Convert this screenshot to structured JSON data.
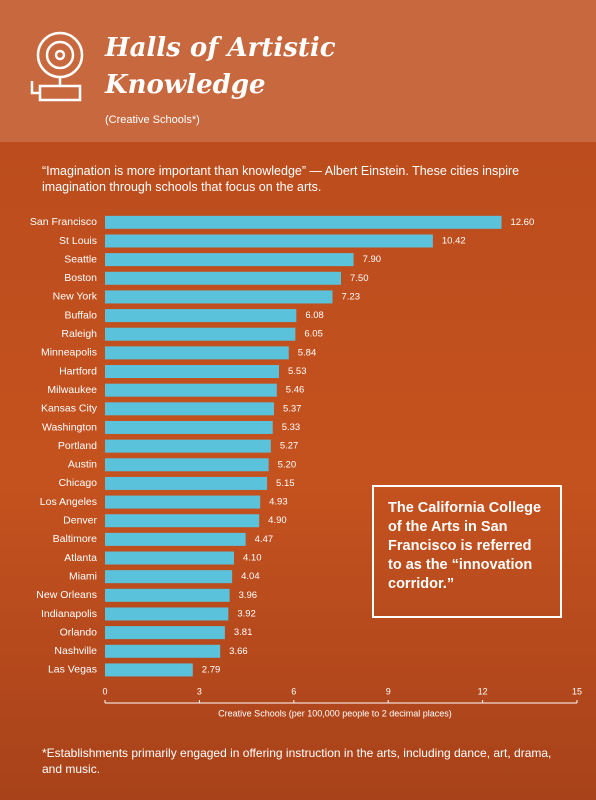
{
  "chart_data": {
    "type": "bar",
    "orientation": "horizontal",
    "title": "Halls of Artistic Knowledge",
    "subtitle": "(Creative Schools*)",
    "description": "“Imagination is more important than knowledge” — Albert Einstein. These cities inspire imagination through schools that focus on the arts.",
    "categories": [
      "San Francisco",
      "St Louis",
      "Seattle",
      "Boston",
      "New York",
      "Buffalo",
      "Raleigh",
      "Minneapolis",
      "Hartford",
      "Milwaukee",
      "Kansas City",
      "Washington",
      "Portland",
      "Austin",
      "Chicago",
      "Los Angeles",
      "Denver",
      "Baltimore",
      "Atlanta",
      "Miami",
      "New Orleans",
      "Indianapolis",
      "Orlando",
      "Nashville",
      "Las Vegas"
    ],
    "values": [
      12.6,
      10.42,
      7.9,
      7.5,
      7.23,
      6.08,
      6.05,
      5.84,
      5.53,
      5.46,
      5.37,
      5.33,
      5.27,
      5.2,
      5.15,
      4.93,
      4.9,
      4.47,
      4.1,
      4.04,
      3.96,
      3.92,
      3.81,
      3.66,
      2.79
    ],
    "value_labels": [
      "12.60",
      "10.42",
      "7.90",
      "7.50",
      "7.23",
      "6.08",
      "6.05",
      "5.84",
      "5.53",
      "5.46",
      "5.37",
      "5.33",
      "5.27",
      "5.20",
      "5.15",
      "4.93",
      "4.90",
      "4.47",
      "4.10",
      "4.04",
      "3.96",
      "3.92",
      "3.81",
      "3.66",
      "2.79"
    ],
    "color": "#5bc2dc",
    "xlim": [
      0,
      15
    ],
    "xticks": [
      0,
      3,
      6,
      9,
      12,
      15
    ],
    "x_label": "Creative Schools (per 100,000 people to 2 decimal places)",
    "annotation": "The California College of the Arts in San Francisco is referred to as the “innovation corridor.”",
    "footnote": "*Establishments primarily engaged in offering instruction in the arts, including dance, art, drama, and music."
  }
}
